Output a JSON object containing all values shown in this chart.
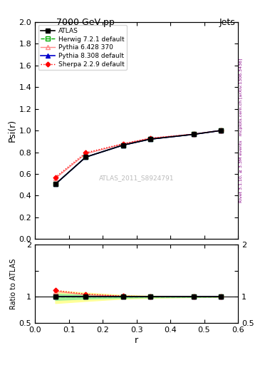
{
  "title_left": "7000 GeV pp",
  "title_right": "Jets",
  "ylabel_main": "Psi(r)",
  "ylabel_ratio": "Ratio to ATLAS",
  "xlabel": "r",
  "right_label_top": "Rivet 3.1.10, ≥ 3.3M events",
  "right_label_bot": "mcplots.cern.ch [arXiv:1306.3436]",
  "watermark": "ATLAS_2011_S8924791",
  "r_values": [
    0.06,
    0.15,
    0.26,
    0.34,
    0.47,
    0.55
  ],
  "atlas_data": [
    0.505,
    0.755,
    0.865,
    0.92,
    0.965,
    1.0
  ],
  "herwig_data": [
    0.505,
    0.755,
    0.865,
    0.92,
    0.965,
    1.0
  ],
  "pythia6_data": [
    0.558,
    0.785,
    0.875,
    0.928,
    0.967,
    1.0
  ],
  "pythia8_data": [
    0.505,
    0.755,
    0.865,
    0.92,
    0.965,
    1.0
  ],
  "sherpa_data": [
    0.568,
    0.795,
    0.878,
    0.928,
    0.967,
    1.0
  ],
  "herwig_ratio": [
    1.0,
    1.0,
    1.0,
    1.0,
    1.0,
    1.0
  ],
  "pythia6_ratio": [
    1.105,
    1.04,
    1.012,
    1.008,
    1.002,
    1.0
  ],
  "pythia8_ratio": [
    1.0,
    1.0,
    1.0,
    1.0,
    1.0,
    1.0
  ],
  "sherpa_ratio": [
    1.125,
    1.053,
    1.015,
    1.008,
    1.002,
    1.0
  ],
  "atlas_band_lo_ratio": [
    0.88,
    0.92,
    0.965,
    0.98,
    0.992,
    0.997
  ],
  "atlas_band_hi_ratio": [
    1.12,
    1.08,
    1.035,
    1.02,
    1.008,
    1.003
  ],
  "herwig_band_lo_ratio": [
    0.94,
    0.965,
    0.982,
    0.99,
    0.996,
    0.999
  ],
  "herwig_band_hi_ratio": [
    1.06,
    1.035,
    1.018,
    1.01,
    1.004,
    1.001
  ],
  "ylim_main": [
    0.0,
    2.0
  ],
  "ylim_ratio": [
    0.5,
    2.0
  ],
  "xlim": [
    0.0,
    0.6
  ],
  "color_atlas": "#000000",
  "color_herwig": "#00aa00",
  "color_pythia6": "#ff8888",
  "color_pythia8": "#0000cc",
  "color_sherpa": "#ff0000"
}
